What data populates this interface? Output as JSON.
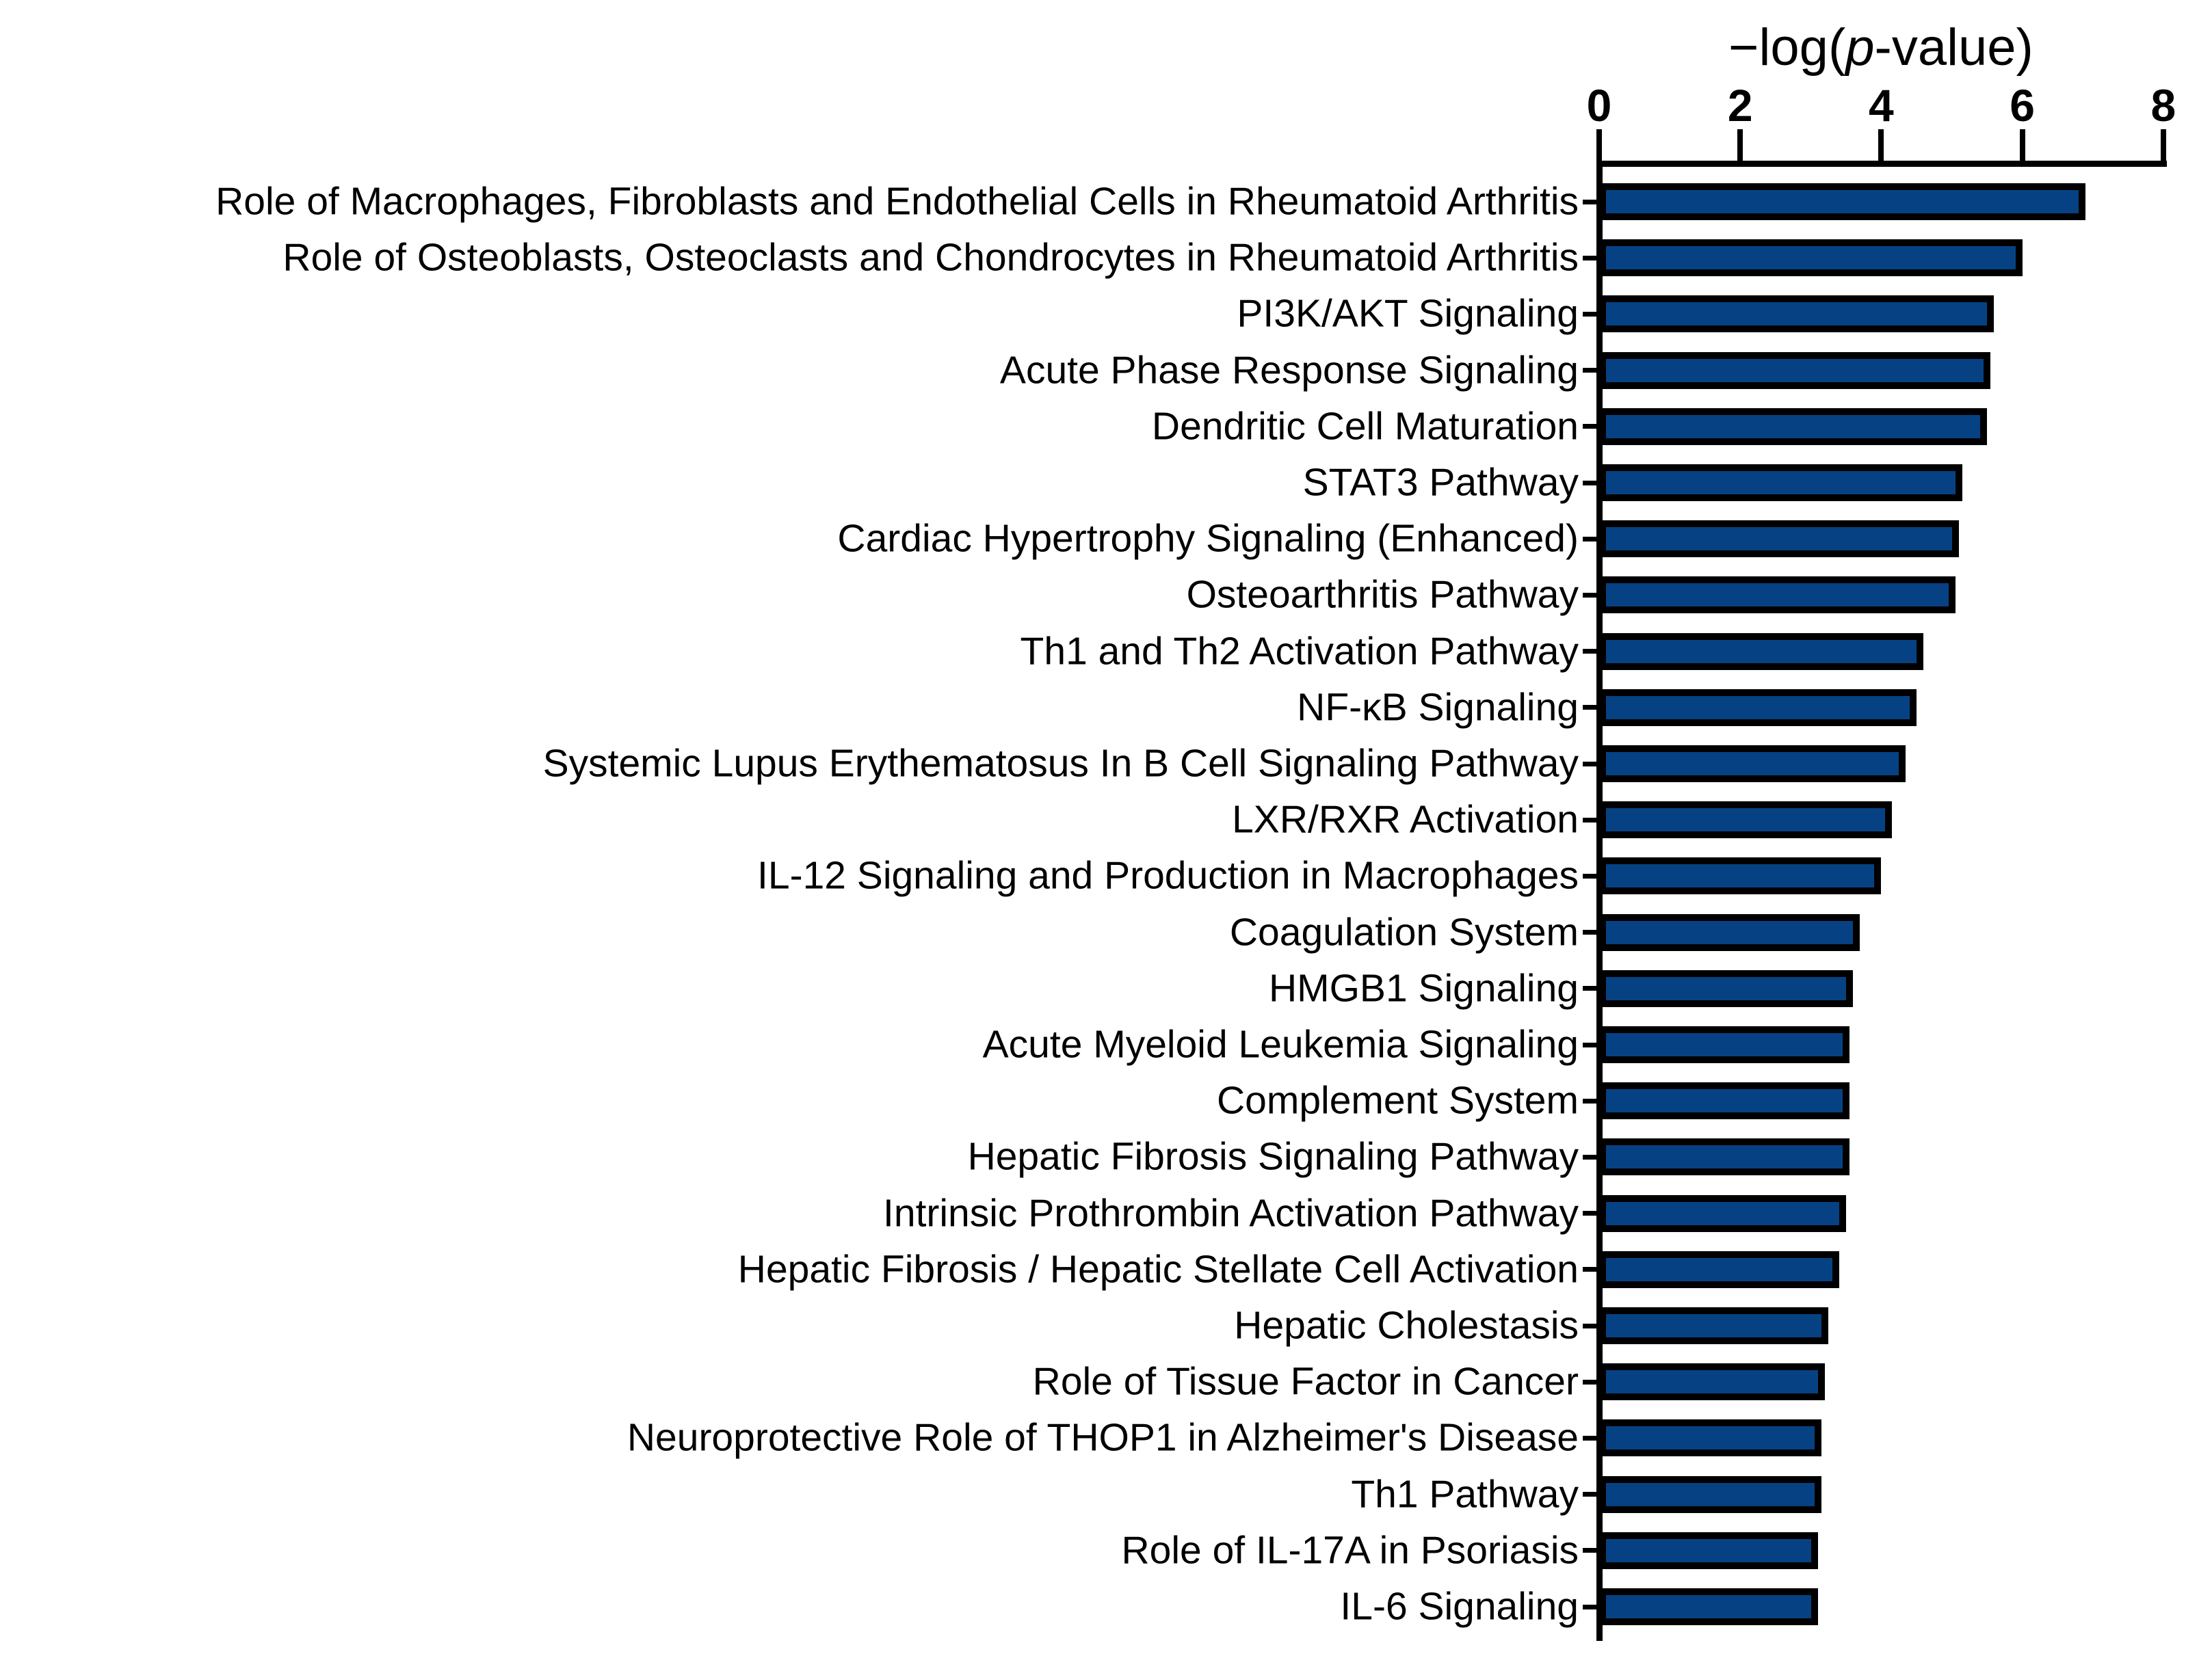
{
  "chart_data": {
    "type": "bar",
    "orientation": "horizontal",
    "title": {
      "text": "−log(p-value)",
      "prefix": "−log(",
      "italic": "p",
      "suffix": "-value)"
    },
    "xlim": [
      0,
      8
    ],
    "xticks": [
      "0",
      "2",
      "4",
      "6",
      "8"
    ],
    "xtick_values": [
      0,
      2,
      4,
      6,
      8
    ],
    "grid": false,
    "legend_position": "none",
    "bar_fill_color": "#064283",
    "bar_border_color": "#000000",
    "categories": [
      "Role of Macrophages, Fibroblasts and Endothelial Cells in Rheumatoid Arthritis",
      "Role of Osteoblasts, Osteoclasts and Chondrocytes in Rheumatoid Arthritis",
      "PI3K/AKT Signaling",
      "Acute Phase Response Signaling",
      "Dendritic Cell Maturation",
      "STAT3 Pathway",
      "Cardiac Hypertrophy Signaling (Enhanced)",
      "Osteoarthritis Pathway",
      "Th1 and Th2 Activation Pathway",
      "NF-κB Signaling",
      "Systemic Lupus Erythematosus In B Cell Signaling Pathway",
      "LXR/RXR Activation",
      "IL-12 Signaling and Production in Macrophages",
      "Coagulation System",
      "HMGB1 Signaling",
      "Acute Myeloid Leukemia Signaling",
      "Complement System",
      "Hepatic Fibrosis Signaling Pathway",
      "Intrinsic Prothrombin Activation Pathway",
      "Hepatic Fibrosis / Hepatic Stellate Cell Activation",
      "Hepatic Cholestasis",
      "Role of Tissue Factor in Cancer",
      "Neuroprotective Role of THOP1 in Alzheimer's Disease",
      "Th1 Pathway",
      "Role of IL-17A in Psoriasis",
      "IL-6 Signaling"
    ],
    "values": [
      6.9,
      6.0,
      5.6,
      5.55,
      5.5,
      5.15,
      5.1,
      5.05,
      4.6,
      4.5,
      4.35,
      4.15,
      4.0,
      3.7,
      3.6,
      3.55,
      3.55,
      3.55,
      3.5,
      3.4,
      3.25,
      3.2,
      3.15,
      3.15,
      3.1,
      3.1
    ]
  }
}
